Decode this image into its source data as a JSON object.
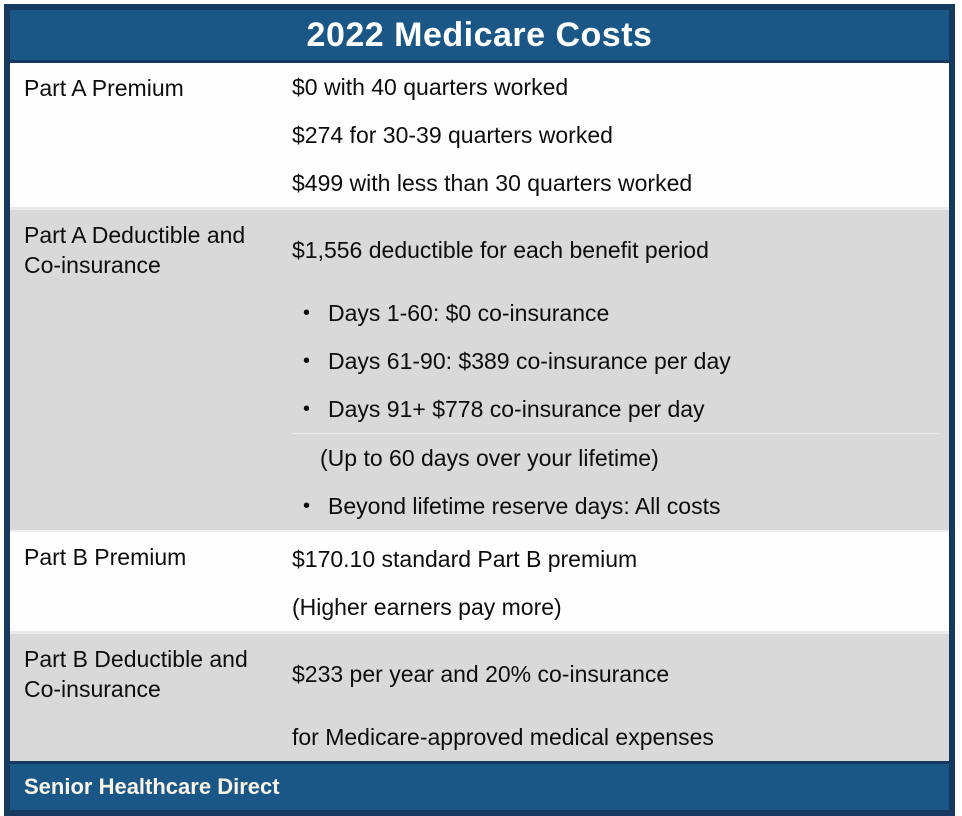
{
  "header": {
    "title": "2022 Medicare Costs"
  },
  "icons": {
    "bullet": "•"
  },
  "colors": {
    "header_blue": "#1a5787",
    "border_navy": "#16395f",
    "row_gray": "#d9d9d9",
    "row_white": "#fefefe",
    "body_text": "#0d0d0d",
    "footer_text": "#f8f3e6"
  },
  "table": {
    "rows": [
      {
        "label": "Part A Premium",
        "shade": "white",
        "lines": [
          {
            "text": "$0 with 40 quarters worked",
            "style": "plain"
          },
          {
            "text": "$274 for 30-39 quarters worked",
            "style": "plain"
          },
          {
            "text": "$499 with less than 30 quarters worked",
            "style": "plain"
          }
        ]
      },
      {
        "label": "Part A Deductible and Co-insurance",
        "shade": "gray",
        "lines": [
          {
            "text": "$1,556 deductible for each benefit period",
            "style": "plain"
          },
          {
            "text": "Days 1-60: $0 co-insurance",
            "style": "bullet"
          },
          {
            "text": "Days 61-90: $389 co-insurance per day",
            "style": "bullet"
          },
          {
            "text": "Days 91+ $778 co-insurance per day",
            "style": "bullet"
          },
          {
            "text": "(Up to 60 days over your lifetime)",
            "style": "indent-divider"
          },
          {
            "text": "Beyond lifetime reserve days: All costs",
            "style": "bullet"
          }
        ]
      },
      {
        "label": "Part B Premium",
        "shade": "white",
        "lines": [
          {
            "text": "$170.10 standard Part B premium",
            "style": "plain"
          },
          {
            "text": "(Higher earners pay more)",
            "style": "plain"
          }
        ]
      },
      {
        "label": "Part B Deductible and Co-insurance",
        "shade": "gray",
        "lines": [
          {
            "text": "$233 per year and 20% co-insurance",
            "style": "plain"
          },
          {
            "text": "for Medicare-approved medical expenses",
            "style": "plain"
          }
        ]
      }
    ]
  },
  "footer": {
    "brand": "Senior Healthcare Direct"
  }
}
